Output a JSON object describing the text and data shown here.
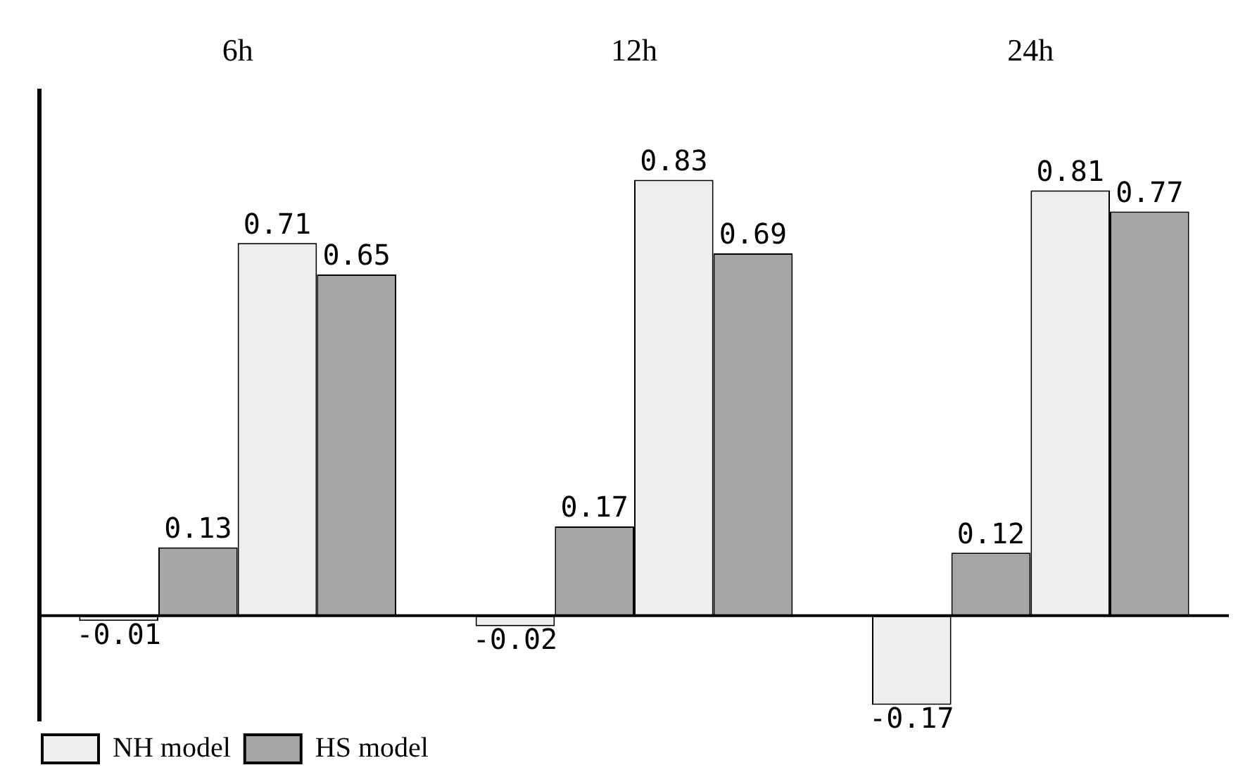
{
  "chart_data": {
    "type": "bar",
    "categories": [
      "6h",
      "12h",
      "24h"
    ],
    "series": [
      {
        "name": "NH model",
        "color": "#eeeeee",
        "values": [
          -0.01,
          -0.02,
          -0.17
        ]
      },
      {
        "name": "HS model",
        "color": "#a6a6a6",
        "values": [
          0.13,
          0.17,
          0.12
        ]
      },
      {
        "color": "#eeeeee",
        "values": [
          0.71,
          0.83,
          0.81
        ]
      },
      {
        "color": "#a6a6a6",
        "values": [
          0.65,
          0.69,
          0.77
        ]
      }
    ],
    "tick_labels": "x",
    "grid": false,
    "data_labels": true,
    "legend": "bottom left"
  }
}
